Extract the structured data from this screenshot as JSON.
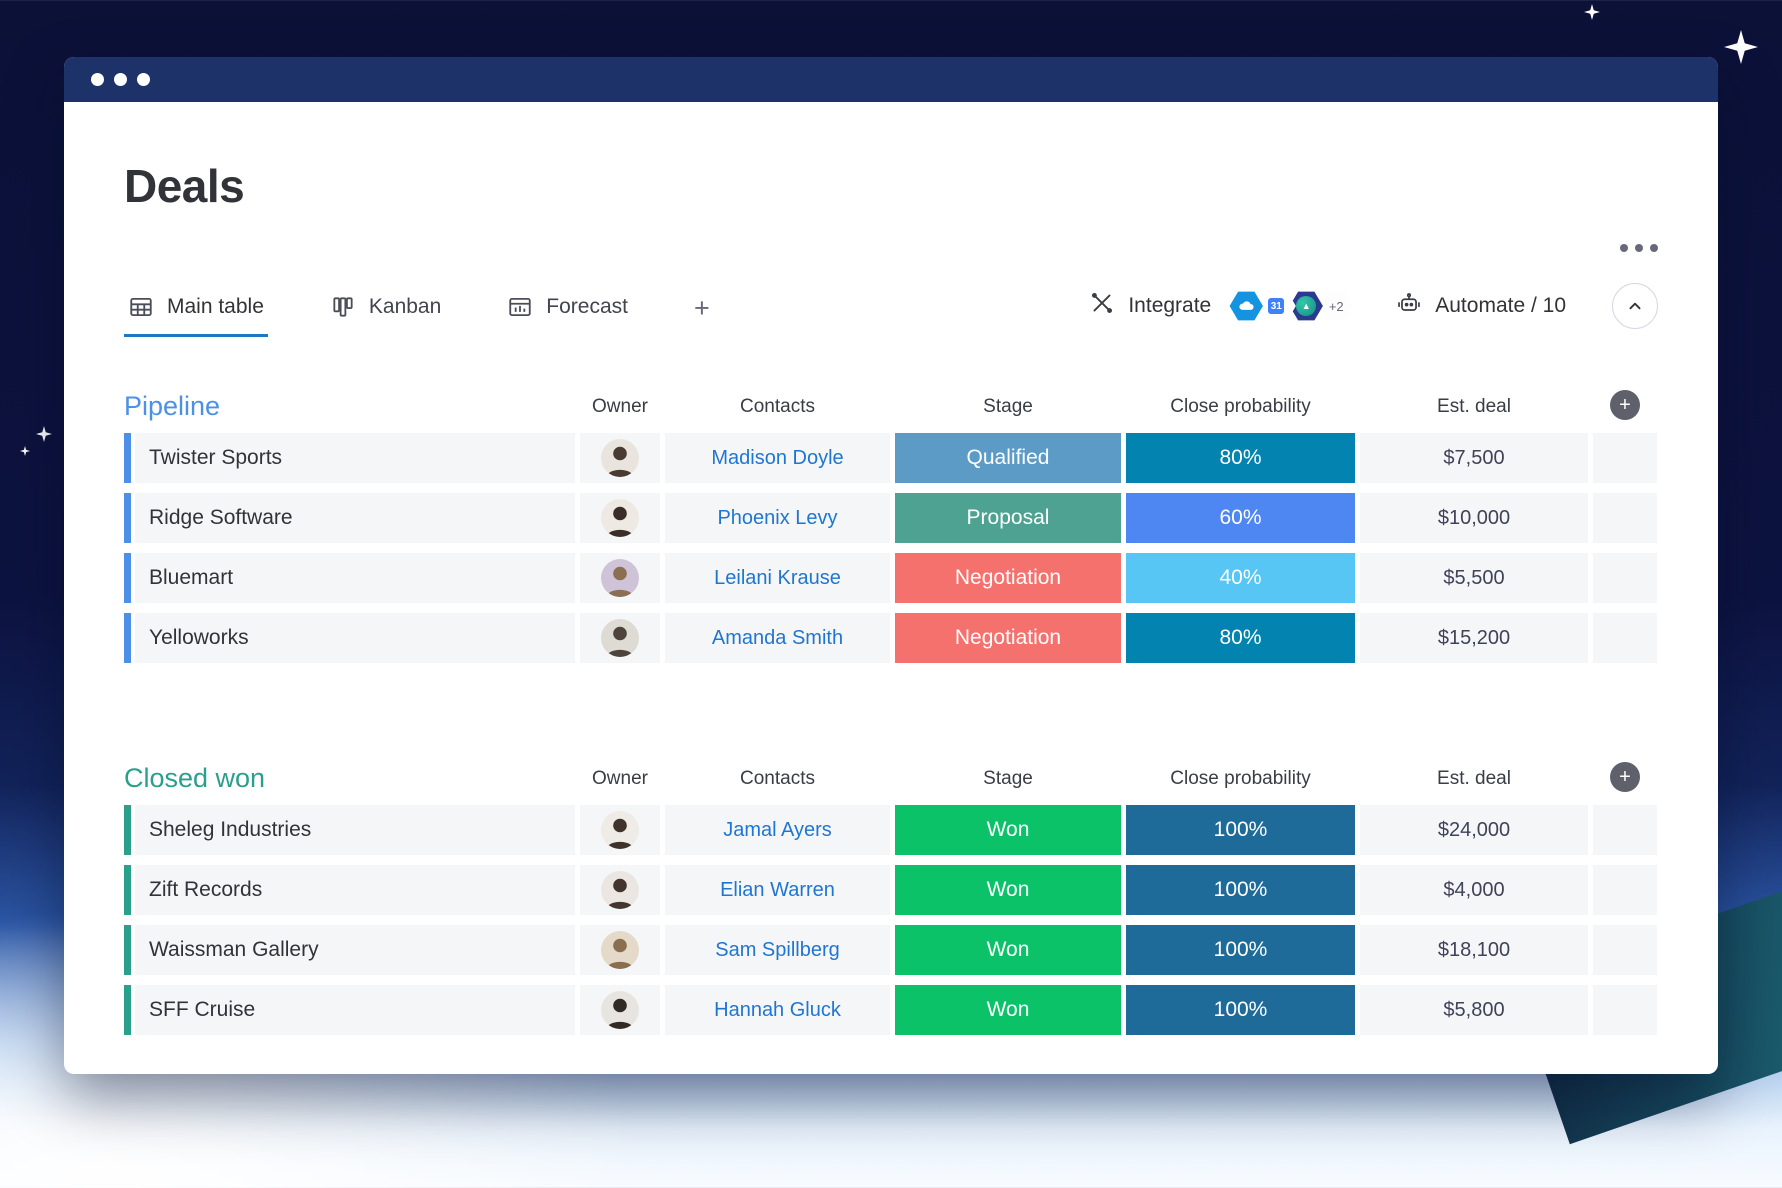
{
  "window": {
    "controls_icon": "window-dots-icon"
  },
  "header": {
    "title": "Deals",
    "menu_icon": "kebab-menu-icon"
  },
  "tabs": [
    {
      "label": "Main table",
      "icon": "table-icon",
      "active": true
    },
    {
      "label": "Kanban",
      "icon": "kanban-icon",
      "active": false
    },
    {
      "label": "Forecast",
      "icon": "forecast-chart-icon",
      "active": false
    }
  ],
  "add_view": {
    "label": "+",
    "icon": "add-view-icon"
  },
  "toolbar": {
    "integrate": {
      "label": "Integrate",
      "icon": "integrations-icon",
      "apps": [
        "salesforce-app-icon",
        "google-calendar-app-icon",
        "teal-circle-app-icon"
      ],
      "more_badge": "+2"
    },
    "automate": {
      "label": "Automate / 10",
      "icon": "robot-icon"
    },
    "collapse_icon": "chevron-up-icon"
  },
  "table": {
    "columns": [
      "Owner",
      "Contacts",
      "Stage",
      "Close probability",
      "Est. deal"
    ],
    "add_column_icon": "plus-icon"
  },
  "groups": [
    {
      "name": "Pipeline",
      "color": "#4c90e8",
      "rows": [
        {
          "name": "Twister Sports",
          "contact": "Madison Doyle",
          "stage": "Qualified",
          "stage_color": "#5c9bc6",
          "probability": "80%",
          "probability_color": "#0384b0",
          "deal": "$7,500",
          "avatar_bg": "#e9e4de",
          "avatar_fg": "#4a3b32"
        },
        {
          "name": "Ridge Software",
          "contact": "Phoenix Levy",
          "stage": "Proposal",
          "stage_color": "#4da292",
          "probability": "60%",
          "probability_color": "#4e87f2",
          "deal": "$10,000",
          "avatar_bg": "#efe9e3",
          "avatar_fg": "#3b2e29"
        },
        {
          "name": "Bluemart",
          "contact": "Leilani Krause",
          "stage": "Negotiation",
          "stage_color": "#f5716d",
          "probability": "40%",
          "probability_color": "#58c6f4",
          "deal": "$5,500",
          "avatar_bg": "#cfc3d8",
          "avatar_fg": "#8a6f52"
        },
        {
          "name": "Yelloworks",
          "contact": "Amanda Smith",
          "stage": "Negotiation",
          "stage_color": "#f5716d",
          "probability": "80%",
          "probability_color": "#0384b0",
          "deal": "$15,200",
          "avatar_bg": "#dedad4",
          "avatar_fg": "#4e443c"
        }
      ]
    },
    {
      "name": "Closed won",
      "color": "#2aa08c",
      "rows": [
        {
          "name": "Sheleg Industries",
          "contact": "Jamal Ayers",
          "stage": "Won",
          "stage_color": "#0cc268",
          "probability": "100%",
          "probability_color": "#1e6b9a",
          "deal": "$24,000",
          "avatar_bg": "#efece7",
          "avatar_fg": "#3f332c"
        },
        {
          "name": "Zift Records",
          "contact": "Elian Warren",
          "stage": "Won",
          "stage_color": "#0cc268",
          "probability": "100%",
          "probability_color": "#1e6b9a",
          "deal": "$4,000",
          "avatar_bg": "#ebe6e1",
          "avatar_fg": "#43362f"
        },
        {
          "name": "Waissman Gallery",
          "contact": "Sam Spillberg",
          "stage": "Won",
          "stage_color": "#0cc268",
          "probability": "100%",
          "probability_color": "#1e6b9a",
          "deal": "$18,100",
          "avatar_bg": "#e5dac9",
          "avatar_fg": "#8a6f4e"
        },
        {
          "name": "SFF Cruise",
          "contact": "Hannah Gluck",
          "stage": "Won",
          "stage_color": "#0cc268",
          "probability": "100%",
          "probability_color": "#1e6b9a",
          "deal": "$5,800",
          "avatar_bg": "#e8e5e1",
          "avatar_fg": "#322a25"
        }
      ]
    }
  ]
}
